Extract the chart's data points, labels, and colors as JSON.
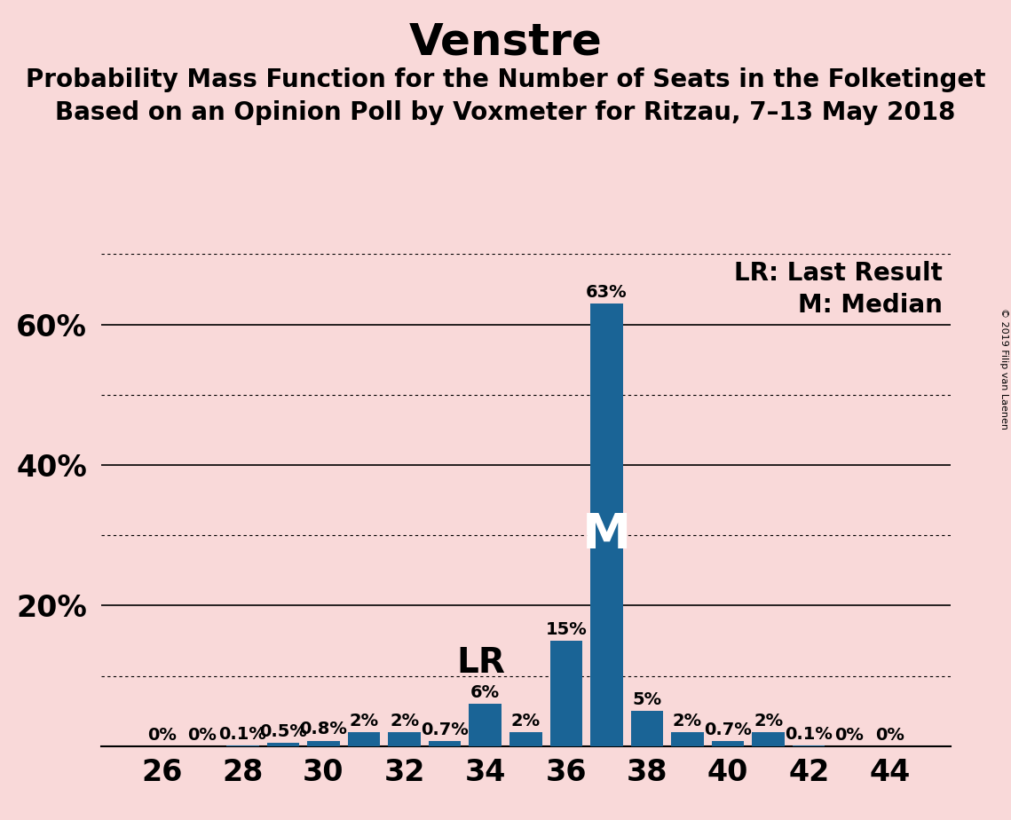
{
  "title": "Venstre",
  "subtitle1": "Probability Mass Function for the Number of Seats in the Folketinget",
  "subtitle2": "Based on an Opinion Poll by Voxmeter for Ritzau, 7–13 May 2018",
  "copyright": "© 2019 Filip van Laenen",
  "seats": [
    26,
    27,
    28,
    29,
    30,
    31,
    32,
    33,
    34,
    35,
    36,
    37,
    38,
    39,
    40,
    41,
    42,
    43,
    44
  ],
  "probabilities": [
    0.0,
    0.0,
    0.1,
    0.5,
    0.8,
    2.0,
    2.0,
    0.7,
    6.0,
    2.0,
    15.0,
    63.0,
    5.0,
    2.0,
    0.7,
    2.0,
    0.1,
    0.0,
    0.0
  ],
  "bar_color": "#1a6496",
  "background_color": "#f9d9d9",
  "lr_seat": 34,
  "median_seat": 37,
  "ylim": [
    0,
    70
  ],
  "solid_yticks": [
    20,
    40,
    60
  ],
  "dotted_yticks": [
    10,
    30,
    50,
    70
  ],
  "title_fontsize": 36,
  "subtitle_fontsize": 20,
  "bar_label_fontsize": 14,
  "ytick_fontsize": 24,
  "xtick_fontsize": 24,
  "legend_fontsize": 20,
  "lr_label_fontsize": 28,
  "m_label_fontsize": 40
}
